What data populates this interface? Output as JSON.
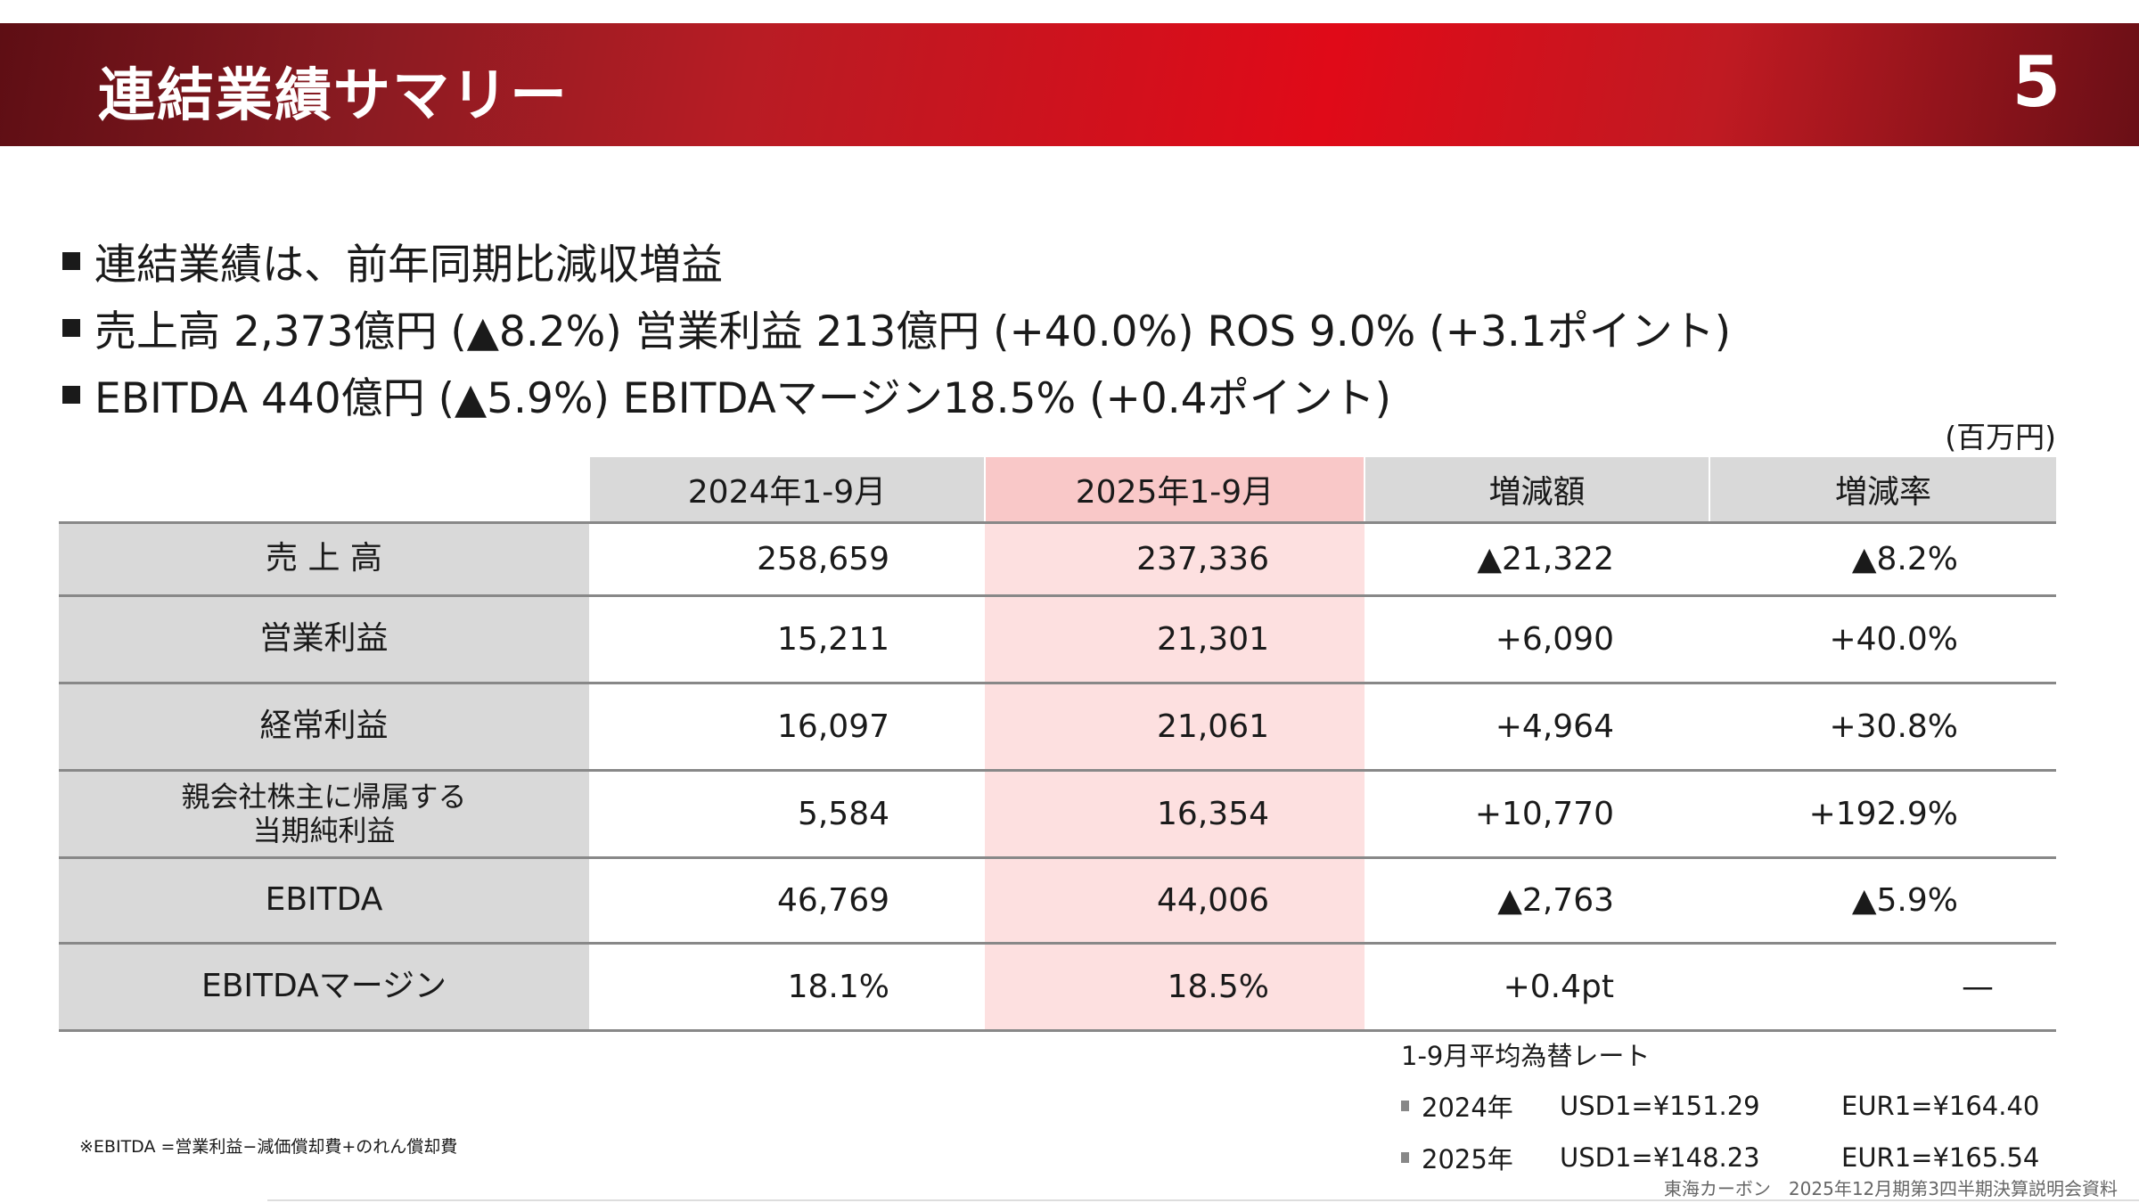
{
  "header": {
    "title": "連結業績サマリー",
    "page_number": "5"
  },
  "bullets": [
    "連結業績は、前年同期比減収増益",
    "売上高 2,373億円 (▲8.2%)  営業利益 213億円 (+40.0%)  ROS 9.0% (+3.1ポイント)",
    "EBITDA 440億円 (▲5.9%)  EBITDAマージン18.5% (+0.4ポイント)"
  ],
  "unit": "(百万円)",
  "table": {
    "columns": [
      "2024年1-9月",
      "2025年1-9月",
      "増減額",
      "増減率"
    ],
    "rows": [
      {
        "label": "売 上 高",
        "values": [
          "258,659",
          "237,336",
          "▲21,322",
          "▲8.2%"
        ]
      },
      {
        "label": "営業利益",
        "values": [
          "15,211",
          "21,301",
          "+6,090",
          "+40.0%"
        ]
      },
      {
        "label": "経常利益",
        "values": [
          "16,097",
          "21,061",
          "+4,964",
          "+30.8%"
        ]
      },
      {
        "label": "親会社株主に帰属する\n当期純利益",
        "values": [
          "5,584",
          "16,354",
          "+10,770",
          "+192.9%"
        ]
      },
      {
        "label": "EBITDA",
        "values": [
          "46,769",
          "44,006",
          "▲2,763",
          "▲5.9%"
        ]
      },
      {
        "label": "EBITDAマージン",
        "values": [
          "18.1%",
          "18.5%",
          "+0.4pt",
          "—"
        ]
      }
    ]
  },
  "rates": {
    "title": "1-9月平均為替レート",
    "rows": [
      {
        "year": "2024年",
        "usd": "USD1=¥151.29",
        "eur": "EUR1=¥164.40"
      },
      {
        "year": "2025年",
        "usd": "USD1=¥148.23",
        "eur": "EUR1=¥165.54"
      }
    ]
  },
  "footnote": "※EBITDA =営業利益−減価償却費+のれん償却費",
  "footer": "東海カーボン　2025年12月期第3四半期決算説明会資料",
  "colors": {
    "accent": "#e00a18",
    "highlight": "#fde0e0",
    "label_bg": "#d9d9d9"
  }
}
